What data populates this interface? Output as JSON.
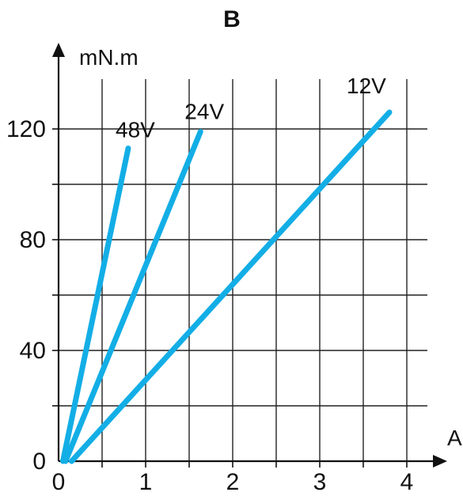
{
  "chart_data": {
    "type": "line",
    "title": "B",
    "xlabel": "A",
    "ylabel": "mN.m",
    "xlim": [
      0,
      4.5
    ],
    "ylim": [
      0,
      145
    ],
    "x_ticks": [
      0,
      1,
      2,
      3,
      4
    ],
    "y_ticks": [
      0,
      40,
      80,
      120
    ],
    "x_tick_labels": [
      "0",
      "1",
      "2",
      "3",
      "4"
    ],
    "y_tick_labels": [
      "0",
      "40",
      "80",
      "120"
    ],
    "x_grid": [
      0.5,
      1,
      1.5,
      2,
      2.5,
      3,
      3.5,
      4
    ],
    "y_grid": [
      20,
      40,
      60,
      80,
      100,
      120
    ],
    "grid": true,
    "series": [
      {
        "name": "48V",
        "color": "#13aee6",
        "x": [
          0.05,
          0.8
        ],
        "y": [
          0,
          113
        ]
      },
      {
        "name": "24V",
        "color": "#13aee6",
        "x": [
          0.08,
          1.63
        ],
        "y": [
          0,
          119
        ]
      },
      {
        "name": "12V",
        "color": "#13aee6",
        "x": [
          0.15,
          3.8
        ],
        "y": [
          0,
          126
        ]
      }
    ]
  }
}
